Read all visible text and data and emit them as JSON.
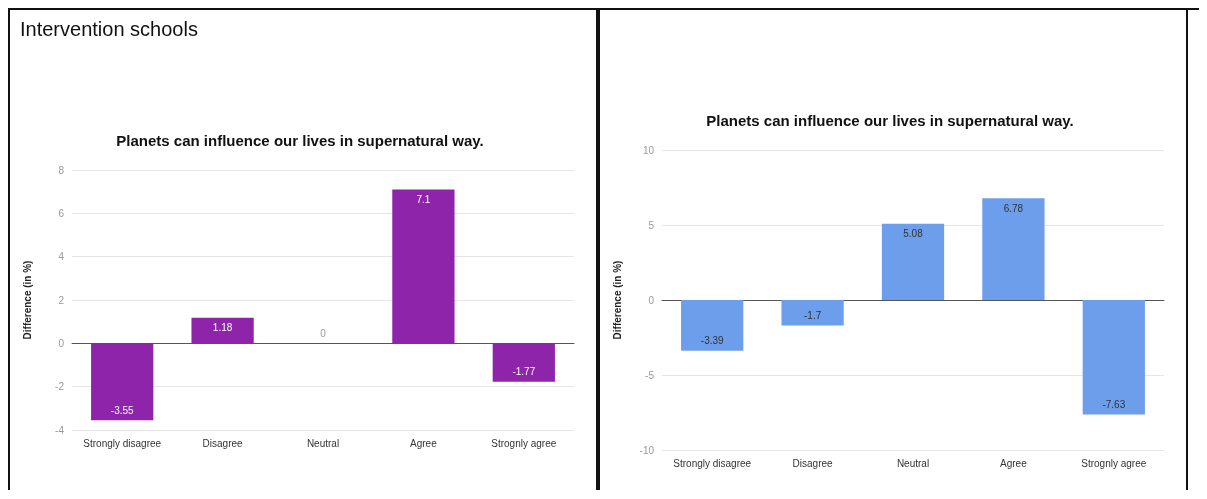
{
  "chart_data": [
    {
      "type": "bar",
      "annotations": [
        "Intervention schools"
      ],
      "title": "Planets can influence our lives in supernatural way.",
      "ylabel": "Difference (in %)",
      "categories": [
        "Strongly disagree",
        "Disagree",
        "Neutral",
        "Agree",
        "Strognly agree"
      ],
      "values": [
        -3.55,
        1.18,
        0,
        7.1,
        -1.77
      ],
      "color": "#8e24aa",
      "ylim": [
        -4,
        8
      ],
      "yticks": [
        -4,
        -2,
        0,
        2,
        4,
        6,
        8
      ],
      "grid": "y",
      "data_labels": true
    },
    {
      "type": "bar",
      "title": "Planets can influence our lives in supernatural way.",
      "ylabel": "Difference (in %)",
      "categories": [
        "Strongly disagree",
        "Disagree",
        "Neutral",
        "Agree",
        "Strognly agree"
      ],
      "values": [
        -3.39,
        -1.7,
        5.08,
        6.78,
        -7.63
      ],
      "color": "#6d9eeb",
      "ylim": [
        -10,
        10
      ],
      "yticks": [
        -10,
        -5,
        0,
        5,
        10
      ],
      "grid": "y",
      "data_labels": true
    }
  ]
}
